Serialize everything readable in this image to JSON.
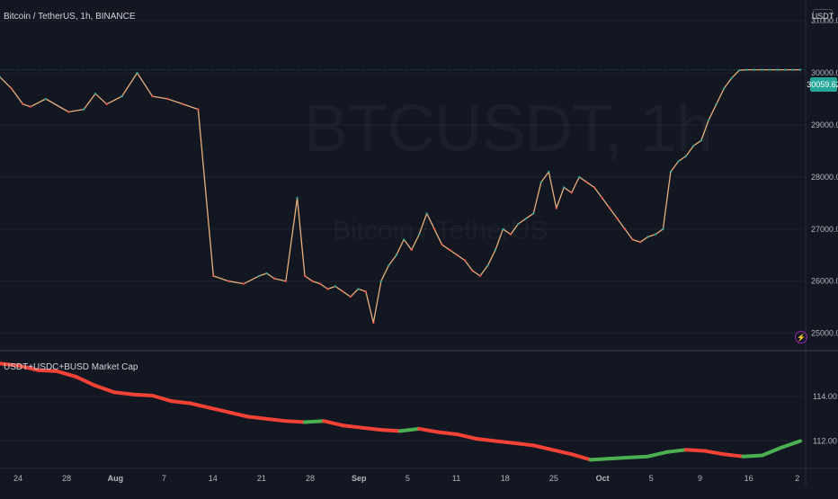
{
  "header": {
    "symbol_description": "Bitcoin / TetherUS, 1h, BINANCE",
    "currency_badge": "USDT",
    "last_price": "30059.62"
  },
  "watermark": {
    "main": "BTCUSDT, 1h",
    "sub": "Bitcoin / TetherUS"
  },
  "icons": {
    "alert": "lightning-bolt-icon"
  },
  "colors": {
    "background": "#131722",
    "candle_up": "#26a69a",
    "candle_down": "#ef5350",
    "price_line": "#e8b07a",
    "indicator_up": "#4caf50",
    "indicator_down": "#f44336"
  },
  "chart_data": [
    {
      "type": "line",
      "title": "Bitcoin / TetherUS, 1h, BINANCE",
      "ylim": [
        24700,
        31400
      ],
      "y_ticks": [
        25000,
        26000,
        27000,
        28000,
        29000,
        30000,
        31000
      ],
      "y_tick_labels": [
        "25000.00",
        "26000.00",
        "27000.00",
        "28000.00",
        "29000.00",
        "30000.00",
        "31000.00"
      ],
      "x_tick_labels": [
        "24",
        "28",
        "Aug",
        "7",
        "14",
        "21",
        "28",
        "Sep",
        "5",
        "11",
        "18",
        "25",
        "Oct",
        "5",
        "9",
        "16",
        "2"
      ],
      "series": [
        {
          "name": "BTCUSDT",
          "x": [
            0,
            3,
            6,
            8,
            12,
            18,
            22,
            25,
            28,
            32,
            36,
            40,
            44,
            48,
            52,
            56,
            60,
            64,
            68,
            70,
            72,
            75,
            78,
            80,
            82,
            84,
            86,
            88,
            90,
            92,
            94,
            96,
            98,
            100,
            102,
            104,
            106,
            108,
            110,
            112,
            114,
            116,
            118,
            120,
            122,
            124,
            126,
            128,
            130,
            132,
            134,
            136,
            138,
            140,
            142,
            144,
            146,
            148,
            150,
            152,
            154,
            156,
            158,
            160,
            162,
            164,
            166,
            168,
            170,
            172,
            174,
            176,
            178,
            180,
            182,
            184,
            186,
            188,
            190,
            192,
            194,
            196,
            198,
            200,
            202,
            204,
            206,
            208,
            210
          ],
          "values": [
            29920,
            29700,
            29400,
            29350,
            29500,
            29250,
            29300,
            29600,
            29400,
            29550,
            30000,
            29550,
            29500,
            29400,
            29300,
            26100,
            26000,
            25950,
            26100,
            26150,
            26050,
            26000,
            27600,
            26100,
            26000,
            25950,
            25850,
            25900,
            25800,
            25700,
            25850,
            25800,
            25200,
            26000,
            26300,
            26500,
            26800,
            26600,
            26900,
            27300,
            27000,
            26700,
            26600,
            26500,
            26400,
            26200,
            26100,
            26300,
            26600,
            27000,
            26900,
            27100,
            27200,
            27300,
            27900,
            28100,
            27400,
            27800,
            27700,
            28000,
            27900,
            27800,
            27600,
            27400,
            27200,
            27000,
            26800,
            26750,
            26850,
            26900,
            27000,
            28100,
            28300,
            28400,
            28600,
            28700,
            29100,
            29400,
            29700,
            29900,
            30050,
            30059.62,
            30059.62,
            30059.62,
            30059.62,
            30059.62,
            30059.62,
            30059.62,
            30059.62
          ]
        }
      ]
    },
    {
      "type": "line",
      "title": "USDT+USDC+BUSD Market Cap",
      "ylim": [
        110.8,
        116.0
      ],
      "y_ticks": [
        112,
        114
      ],
      "y_tick_labels": [
        "112.00",
        "114.00"
      ],
      "series": [
        {
          "name": "USDT+USDC+BUSD Market Cap",
          "x": [
            0,
            5,
            10,
            15,
            20,
            25,
            30,
            35,
            40,
            45,
            50,
            55,
            60,
            65,
            70,
            75,
            80,
            85,
            90,
            95,
            100,
            105,
            110,
            115,
            120,
            125,
            130,
            135,
            140,
            145,
            150,
            155,
            160,
            165,
            170,
            175,
            180,
            185,
            190,
            195,
            200,
            205,
            210
          ],
          "values": [
            115.5,
            115.4,
            115.2,
            115.15,
            114.9,
            114.5,
            114.2,
            114.1,
            114.05,
            113.8,
            113.7,
            113.5,
            113.3,
            113.1,
            113.0,
            112.9,
            112.85,
            112.9,
            112.7,
            112.6,
            112.5,
            112.45,
            112.55,
            112.4,
            112.3,
            112.1,
            112.0,
            111.9,
            111.8,
            111.6,
            111.4,
            111.15,
            111.2,
            111.25,
            111.3,
            111.5,
            111.6,
            111.55,
            111.4,
            111.3,
            111.35,
            111.7,
            112.0
          ]
        }
      ]
    }
  ]
}
